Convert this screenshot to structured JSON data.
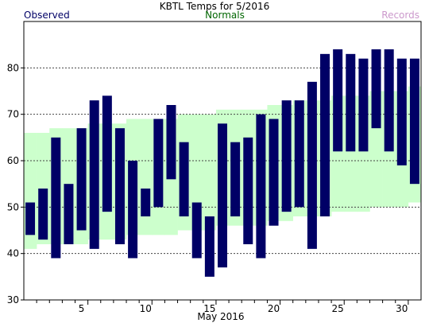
{
  "chart_data": {
    "type": "bar",
    "title": "KBTL Temps for  5/2016",
    "xlabel": "May 2016",
    "ylabel": "",
    "ylim": [
      30,
      90
    ],
    "y_ticks": [
      30,
      40,
      50,
      60,
      70,
      80
    ],
    "gridlines_y": [
      40,
      50,
      60,
      70,
      80
    ],
    "x_tick_labels": [
      5,
      10,
      15,
      20,
      25,
      30
    ],
    "days": [
      1,
      2,
      3,
      4,
      5,
      6,
      7,
      8,
      9,
      10,
      11,
      12,
      13,
      14,
      15,
      16,
      17,
      18,
      19,
      20,
      21,
      22,
      23,
      24,
      25,
      26,
      27,
      28,
      29,
      30,
      31
    ],
    "legend": [
      {
        "label": "Observed",
        "color": "#000066",
        "position": "top-left"
      },
      {
        "label": "Normals",
        "color": "#006600",
        "position": "top-center"
      },
      {
        "label": "Records",
        "color": "#cc99cc",
        "position": "top-right"
      }
    ],
    "series": [
      {
        "name": "Observed",
        "color": "#000066",
        "low": [
          44,
          43,
          39,
          42,
          45,
          41,
          49,
          42,
          39,
          48,
          50,
          56,
          48,
          39,
          35,
          37,
          48,
          42,
          39,
          46,
          49,
          50,
          41,
          48,
          62,
          62,
          62,
          67,
          62,
          59,
          55
        ],
        "high": [
          51,
          54,
          65,
          55,
          67,
          73,
          74,
          67,
          60,
          54,
          69,
          72,
          64,
          51,
          48,
          68,
          64,
          65,
          70,
          69,
          73,
          73,
          77,
          83,
          84,
          83,
          82,
          84,
          84,
          82,
          82
        ]
      },
      {
        "name": "Normals",
        "color": "#ccffcc",
        "low": [
          41,
          42,
          42,
          42,
          42,
          43,
          43,
          43,
          44,
          44,
          44,
          44,
          45,
          45,
          45,
          46,
          46,
          46,
          46,
          47,
          47,
          48,
          48,
          48,
          49,
          49,
          49,
          50,
          50,
          50,
          51
        ],
        "high": [
          66,
          66,
          67,
          67,
          67,
          68,
          68,
          68,
          69,
          69,
          69,
          69,
          70,
          70,
          70,
          71,
          71,
          71,
          71,
          72,
          72,
          73,
          73,
          73,
          74,
          74,
          74,
          75,
          75,
          75,
          76
        ]
      }
    ]
  }
}
